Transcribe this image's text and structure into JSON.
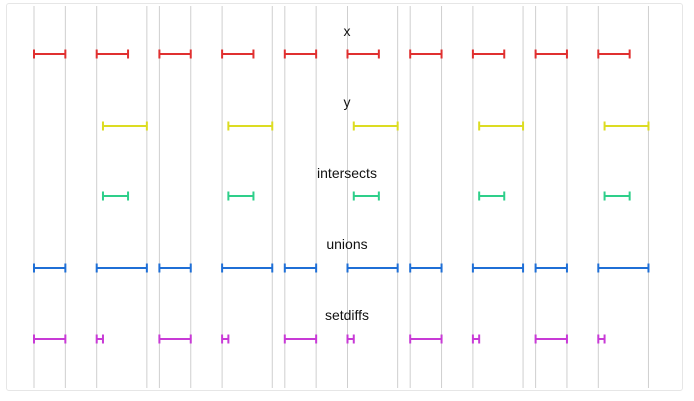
{
  "diagram": {
    "colors": {
      "guide": "#cfcfcf",
      "x": "#e03030",
      "y": "#dcdc22",
      "intersects": "#2ecf8a",
      "unions": "#1f6fd6",
      "setdiffs": "#c83ad6"
    },
    "domain": [
      0,
      100
    ],
    "boundaries": [
      0,
      5,
      10,
      18,
      20,
      25,
      30,
      38,
      40,
      45,
      50,
      58,
      60,
      65,
      70,
      78,
      80,
      85,
      90,
      98
    ],
    "rows": [
      {
        "key": "x",
        "label": "x",
        "intervals": [
          [
            0,
            5
          ],
          [
            10,
            15
          ],
          [
            20,
            25
          ],
          [
            30,
            35
          ],
          [
            40,
            45
          ],
          [
            50,
            55
          ],
          [
            60,
            65
          ],
          [
            70,
            75
          ],
          [
            80,
            85
          ],
          [
            90,
            95
          ]
        ]
      },
      {
        "key": "y",
        "label": "y",
        "intervals": [
          [
            11,
            18
          ],
          [
            31,
            38
          ],
          [
            51,
            58
          ],
          [
            71,
            78
          ],
          [
            91,
            98
          ]
        ]
      },
      {
        "key": "intersects",
        "label": "intersects",
        "intervals": [
          [
            11,
            15
          ],
          [
            31,
            35
          ],
          [
            51,
            55
          ],
          [
            71,
            75
          ],
          [
            91,
            95
          ]
        ]
      },
      {
        "key": "unions",
        "label": "unions",
        "intervals": [
          [
            0,
            5
          ],
          [
            10,
            18
          ],
          [
            20,
            25
          ],
          [
            30,
            38
          ],
          [
            40,
            45
          ],
          [
            50,
            58
          ],
          [
            60,
            65
          ],
          [
            70,
            78
          ],
          [
            80,
            85
          ],
          [
            90,
            98
          ]
        ]
      },
      {
        "key": "setdiffs",
        "label": "setdiffs",
        "intervals": [
          [
            0,
            5
          ],
          [
            10,
            11
          ],
          [
            20,
            25
          ],
          [
            30,
            31
          ],
          [
            40,
            45
          ],
          [
            50,
            51
          ],
          [
            60,
            65
          ],
          [
            70,
            71
          ],
          [
            80,
            85
          ],
          [
            90,
            91
          ]
        ]
      }
    ]
  }
}
